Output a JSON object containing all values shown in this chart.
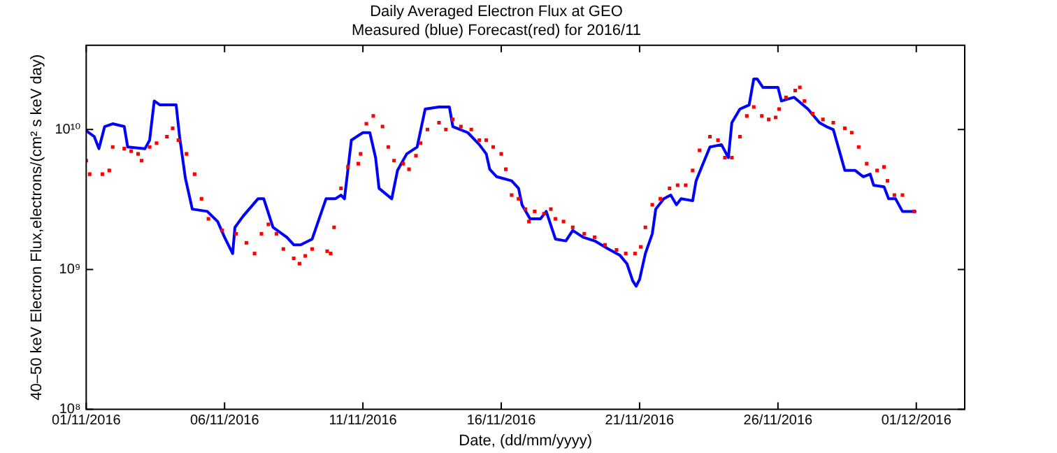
{
  "chart_data": {
    "type": "line",
    "title": "Daily Averaged Electron Flux at GEO",
    "subtitle": "Measured (blue) Forecast(red) for 2016/11",
    "xlabel": "Date, (dd/mm/yyyy)",
    "ylabel": "40–50 keV Electron Flux,electrons/(cm² s keV day)",
    "log": "y",
    "grid": false,
    "legend": false,
    "xlim": [
      "2016-11-01",
      "2016-12-02T18:00"
    ],
    "xticks": [
      {
        "value": "2016-11-01",
        "label": "01/11/2016"
      },
      {
        "value": "2016-11-06",
        "label": "06/11/2016"
      },
      {
        "value": "2016-11-11",
        "label": "11/11/2016"
      },
      {
        "value": "2016-11-16",
        "label": "16/11/2016"
      },
      {
        "value": "2016-11-21",
        "label": "21/11/2016"
      },
      {
        "value": "2016-11-26",
        "label": "26/11/2016"
      },
      {
        "value": "2016-12-01",
        "label": "01/12/2016"
      }
    ],
    "ylim": [
      100000000,
      40000000000
    ],
    "yticks": [
      {
        "value": 100000000,
        "label": "10⁸"
      },
      {
        "value": 1000000000,
        "label": "10⁹"
      },
      {
        "value": 10000000000,
        "label": "10¹⁰"
      }
    ],
    "series": [
      {
        "color": "#0000ff",
        "marker": "none",
        "line_style": "solid",
        "x": [
          "2016-11-01T00:00",
          "2016-11-01T07:00",
          "2016-11-01T11:00",
          "2016-11-01T16:00",
          "2016-11-01T23:00",
          "2016-11-02T09:00",
          "2016-11-02T12:00",
          "2016-11-03T03:00",
          "2016-11-03T07:00",
          "2016-11-03T11:00",
          "2016-11-03T16:00",
          "2016-11-04T06:00",
          "2016-11-04T09:00",
          "2016-11-04T14:00",
          "2016-11-04T20:00",
          "2016-11-05T09:00",
          "2016-11-05T18:00",
          "2016-11-06T00:00",
          "2016-11-06T07:00",
          "2016-11-06T09:00",
          "2016-11-06T16:00",
          "2016-11-07T05:00",
          "2016-11-07T10:00",
          "2016-11-07T18:00",
          "2016-11-08T06:00",
          "2016-11-08T12:00",
          "2016-11-08T18:00",
          "2016-11-09T04:00",
          "2016-11-09T10:00",
          "2016-11-09T16:00",
          "2016-11-10T00:00",
          "2016-11-10T05:00",
          "2016-11-10T08:00",
          "2016-11-10T14:00",
          "2016-11-11T00:00",
          "2016-11-11T06:00",
          "2016-11-11T11:00",
          "2016-11-11T14:00",
          "2016-11-12T01:00",
          "2016-11-12T06:00",
          "2016-11-12T14:00",
          "2016-11-12T23:00",
          "2016-11-13T06:00",
          "2016-11-13T18:00",
          "2016-11-14T03:00",
          "2016-11-14T06:00",
          "2016-11-14T19:00",
          "2016-11-15T05:00",
          "2016-11-15T11:00",
          "2016-11-15T14:00",
          "2016-11-15T20:00",
          "2016-11-16T09:00",
          "2016-11-16T15:00",
          "2016-11-16T18:00",
          "2016-11-17T01:00",
          "2016-11-17T10:00",
          "2016-11-17T15:00",
          "2016-11-17T23:00",
          "2016-11-18T08:00",
          "2016-11-18T14:00",
          "2016-11-18T23:00",
          "2016-11-19T09:00",
          "2016-11-19T21:00",
          "2016-11-20T07:00",
          "2016-11-20T13:00",
          "2016-11-20T18:00",
          "2016-11-20T21:00",
          "2016-11-21T00:00",
          "2016-11-21T05:00",
          "2016-11-21T11:00",
          "2016-11-21T14:00",
          "2016-11-21T21:00",
          "2016-11-22T03:00",
          "2016-11-22T08:00",
          "2016-11-22T12:00",
          "2016-11-22T22:00",
          "2016-11-23T01:00",
          "2016-11-23T07:00",
          "2016-11-23T13:00",
          "2016-11-23T23:00",
          "2016-11-24T05:00",
          "2016-11-24T08:00",
          "2016-11-24T15:00",
          "2016-11-24T23:00",
          "2016-11-25T03:00",
          "2016-11-25T06:00",
          "2016-11-25T11:00",
          "2016-11-26T00:00",
          "2016-11-26T03:00",
          "2016-11-26T14:00",
          "2016-11-27T02:00",
          "2016-11-27T12:00",
          "2016-11-27T18:00",
          "2016-11-28T00:00",
          "2016-11-28T06:00",
          "2016-11-28T10:00",
          "2016-11-28T19:00",
          "2016-11-29T02:00",
          "2016-11-29T08:00",
          "2016-11-29T11:00",
          "2016-11-29T20:00",
          "2016-11-30T00:00",
          "2016-11-30T06:00",
          "2016-11-30T12:00",
          "2016-11-30T18:00",
          "2016-12-01T00:00"
        ],
        "values": [
          9800000000,
          8900000000,
          7300000000,
          10500000000,
          11000000000,
          10500000000,
          7500000000,
          7300000000,
          8400000000,
          16000000000,
          15000000000,
          15000000000,
          8900000000,
          4500000000,
          2700000000,
          2600000000,
          2200000000,
          1700000000,
          1300000000,
          2000000000,
          2400000000,
          3200000000,
          3200000000,
          2000000000,
          1700000000,
          1500000000,
          1500000000,
          1650000000,
          2300000000,
          3200000000,
          3200000000,
          3400000000,
          3200000000,
          8400000000,
          9500000000,
          9500000000,
          6300000000,
          3800000000,
          3200000000,
          5100000000,
          6700000000,
          7500000000,
          14000000000,
          14500000000,
          14500000000,
          10500000000,
          9500000000,
          7800000000,
          6700000000,
          5200000000,
          4600000000,
          4300000000,
          3800000000,
          2900000000,
          2300000000,
          2300000000,
          2600000000,
          1650000000,
          1600000000,
          1900000000,
          1700000000,
          1600000000,
          1400000000,
          1260000000,
          1100000000,
          830000000,
          760000000,
          850000000,
          1300000000,
          1800000000,
          2700000000,
          3200000000,
          3400000000,
          2900000000,
          3200000000,
          3100000000,
          4300000000,
          5700000000,
          7500000000,
          7800000000,
          6300000000,
          11200000000,
          14000000000,
          15000000000,
          23000000000,
          23000000000,
          20000000000,
          20000000000,
          16000000000,
          17000000000,
          14000000000,
          11200000000,
          10500000000,
          10000000000,
          6700000000,
          5100000000,
          5100000000,
          4600000000,
          4800000000,
          4000000000,
          3900000000,
          3200000000,
          3200000000,
          2600000000,
          2600000000,
          2600000000
        ]
      },
      {
        "type": "scatter",
        "color": "#ff0000",
        "marker": "square",
        "x": [
          "2016-11-01T00:00",
          "2016-11-01T03:00",
          "2016-11-01T14:00",
          "2016-11-01T20:00",
          "2016-11-01T23:00",
          "2016-11-02T09:00",
          "2016-11-02T15:00",
          "2016-11-02T21:00",
          "2016-11-03T00:00",
          "2016-11-03T07:00",
          "2016-11-03T13:00",
          "2016-11-03T22:00",
          "2016-11-04T03:00",
          "2016-11-04T08:00",
          "2016-11-04T15:00",
          "2016-11-04T22:00",
          "2016-11-05T04:00",
          "2016-11-05T10:00",
          "2016-11-05T22:00",
          "2016-11-06T10:00",
          "2016-11-06T19:00",
          "2016-11-07T02:00",
          "2016-11-07T08:00",
          "2016-11-07T14:00",
          "2016-11-07T21:00",
          "2016-11-08T03:00",
          "2016-11-08T12:00",
          "2016-11-08T17:00",
          "2016-11-08T22:00",
          "2016-11-09T04:00",
          "2016-11-09T17:00",
          "2016-11-09T20:00",
          "2016-11-09T23:00",
          "2016-11-10T05:00",
          "2016-11-10T11:00",
          "2016-11-10T20:00",
          "2016-11-10T22:00",
          "2016-11-11T03:00",
          "2016-11-11T09:00",
          "2016-11-11T17:00",
          "2016-11-11T22:00",
          "2016-11-12T03:00",
          "2016-11-12T11:00",
          "2016-11-12T16:00",
          "2016-11-12T22:00",
          "2016-11-13T02:00",
          "2016-11-13T08:00",
          "2016-11-13T18:00",
          "2016-11-14T00:00",
          "2016-11-14T06:00",
          "2016-11-14T13:00",
          "2016-11-14T22:00",
          "2016-11-15T05:00",
          "2016-11-15T11:00",
          "2016-11-15T17:00",
          "2016-11-16T00:00",
          "2016-11-16T04:00",
          "2016-11-16T09:00",
          "2016-11-16T15:00",
          "2016-11-16T21:00",
          "2016-11-17T00:00",
          "2016-11-17T05:00",
          "2016-11-17T13:00",
          "2016-11-17T19:00",
          "2016-11-17T23:00",
          "2016-11-18T06:00",
          "2016-11-18T14:00",
          "2016-11-19T00:00",
          "2016-11-19T09:00",
          "2016-11-19T18:00",
          "2016-11-20T04:00",
          "2016-11-20T12:00",
          "2016-11-20T20:00",
          "2016-11-21T01:00",
          "2016-11-21T05:00",
          "2016-11-21T11:00",
          "2016-11-21T18:00",
          "2016-11-22T02:00",
          "2016-11-22T09:00",
          "2016-11-22T16:00",
          "2016-11-22T22:00",
          "2016-11-23T04:00",
          "2016-11-23T13:00",
          "2016-11-23T20:00",
          "2016-11-24T02:00",
          "2016-11-24T08:00",
          "2016-11-24T15:00",
          "2016-11-24T21:00",
          "2016-11-25T03:00",
          "2016-11-25T10:00",
          "2016-11-25T16:00",
          "2016-11-25T22:00",
          "2016-11-26T01:00",
          "2016-11-26T07:00",
          "2016-11-26T15:00",
          "2016-11-26T19:00",
          "2016-11-26T23:00",
          "2016-11-27T06:00",
          "2016-11-27T15:00",
          "2016-11-28T00:00",
          "2016-11-28T10:00",
          "2016-11-28T16:00",
          "2016-11-28T22:00",
          "2016-11-29T05:00",
          "2016-11-29T14:00",
          "2016-11-29T20:00",
          "2016-11-29T23:00",
          "2016-11-30T05:00",
          "2016-11-30T12:00",
          "2016-11-30T22:00"
        ],
        "values": [
          6000000000,
          4800000000,
          4800000000,
          5100000000,
          7500000000,
          7300000000,
          7000000000,
          6700000000,
          6000000000,
          7500000000,
          8000000000,
          8900000000,
          10200000000,
          8400000000,
          6700000000,
          4800000000,
          3200000000,
          2300000000,
          1900000000,
          1800000000,
          1550000000,
          1300000000,
          1800000000,
          2100000000,
          1800000000,
          1400000000,
          1200000000,
          1100000000,
          1250000000,
          1400000000,
          1350000000,
          1300000000,
          2000000000,
          3800000000,
          5400000000,
          5700000000,
          6700000000,
          11000000000,
          12500000000,
          10500000000,
          7500000000,
          6000000000,
          5700000000,
          5200000000,
          6500000000,
          8000000000,
          10000000000,
          11200000000,
          10000000000,
          11800000000,
          10500000000,
          10000000000,
          8400000000,
          8400000000,
          7500000000,
          6700000000,
          5200000000,
          3400000000,
          3200000000,
          2700000000,
          2200000000,
          2600000000,
          2500000000,
          2700000000,
          2300000000,
          2200000000,
          2000000000,
          1800000000,
          1700000000,
          1500000000,
          1380000000,
          1300000000,
          1300000000,
          1450000000,
          2000000000,
          2900000000,
          3200000000,
          3800000000,
          4000000000,
          4000000000,
          5100000000,
          7100000000,
          8900000000,
          8400000000,
          6300000000,
          6300000000,
          8900000000,
          12500000000,
          14500000000,
          12500000000,
          11800000000,
          12200000000,
          14000000000,
          17000000000,
          19000000000,
          20000000000,
          16000000000,
          13000000000,
          11800000000,
          11200000000,
          10200000000,
          9500000000,
          7500000000,
          5700000000,
          5100000000,
          5400000000,
          4300000000,
          3400000000,
          3400000000,
          2600000000
        ]
      }
    ]
  }
}
